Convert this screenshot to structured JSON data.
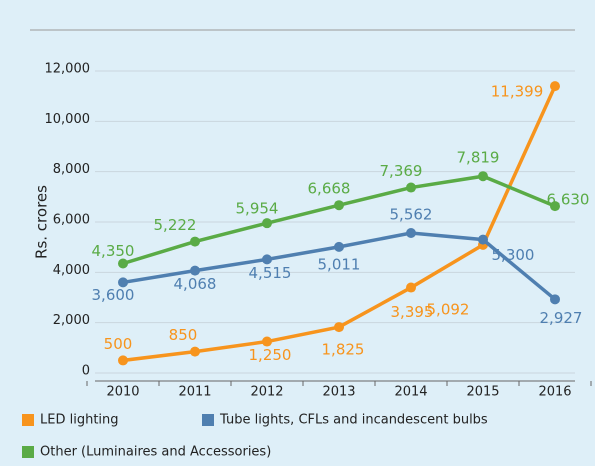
{
  "chart_data": {
    "type": "line",
    "categories": [
      "2010",
      "2011",
      "2012",
      "2013",
      "2014",
      "2015",
      "2016"
    ],
    "y_label": "Rs. crores",
    "ylim": [
      0,
      12000
    ],
    "yticks": [
      0,
      {
        "value": 2000,
        "label": "2,000"
      },
      {
        "value": 4000,
        "label": "4,000"
      },
      {
        "value": 6000,
        "label": "6,000"
      },
      {
        "value": 8000,
        "label": "8,000"
      },
      {
        "value": 10000,
        "label": "10,000"
      },
      {
        "value": 12000,
        "label": "12,000"
      }
    ],
    "grid": true,
    "series": [
      {
        "name": "LED lighting",
        "color": "#f7941d",
        "values": [
          500,
          850,
          1250,
          1825,
          3395,
          5092,
          11399
        ],
        "value_labels": [
          "500",
          "850",
          "1,250",
          "1,825",
          "3,395",
          "5,092",
          "11,399"
        ]
      },
      {
        "name": "Tube lights, CFLs and incandescent bulbs",
        "color": "#4f7fb0",
        "values": [
          3600,
          4068,
          4515,
          5011,
          5562,
          5300,
          2927
        ],
        "value_labels": [
          "3,600",
          "4,068",
          "4,515",
          "5,011",
          "5,562",
          "5,300",
          "2,927"
        ]
      },
      {
        "name": "Other (Luminaires and Accessories)",
        "color": "#5aab46",
        "values": [
          4350,
          5222,
          5954,
          6668,
          7369,
          7819,
          6630
        ],
        "value_labels": [
          "4,350",
          "5,222",
          "5,954",
          "6,668",
          "7,369",
          "7,819",
          "6,630"
        ]
      }
    ]
  }
}
